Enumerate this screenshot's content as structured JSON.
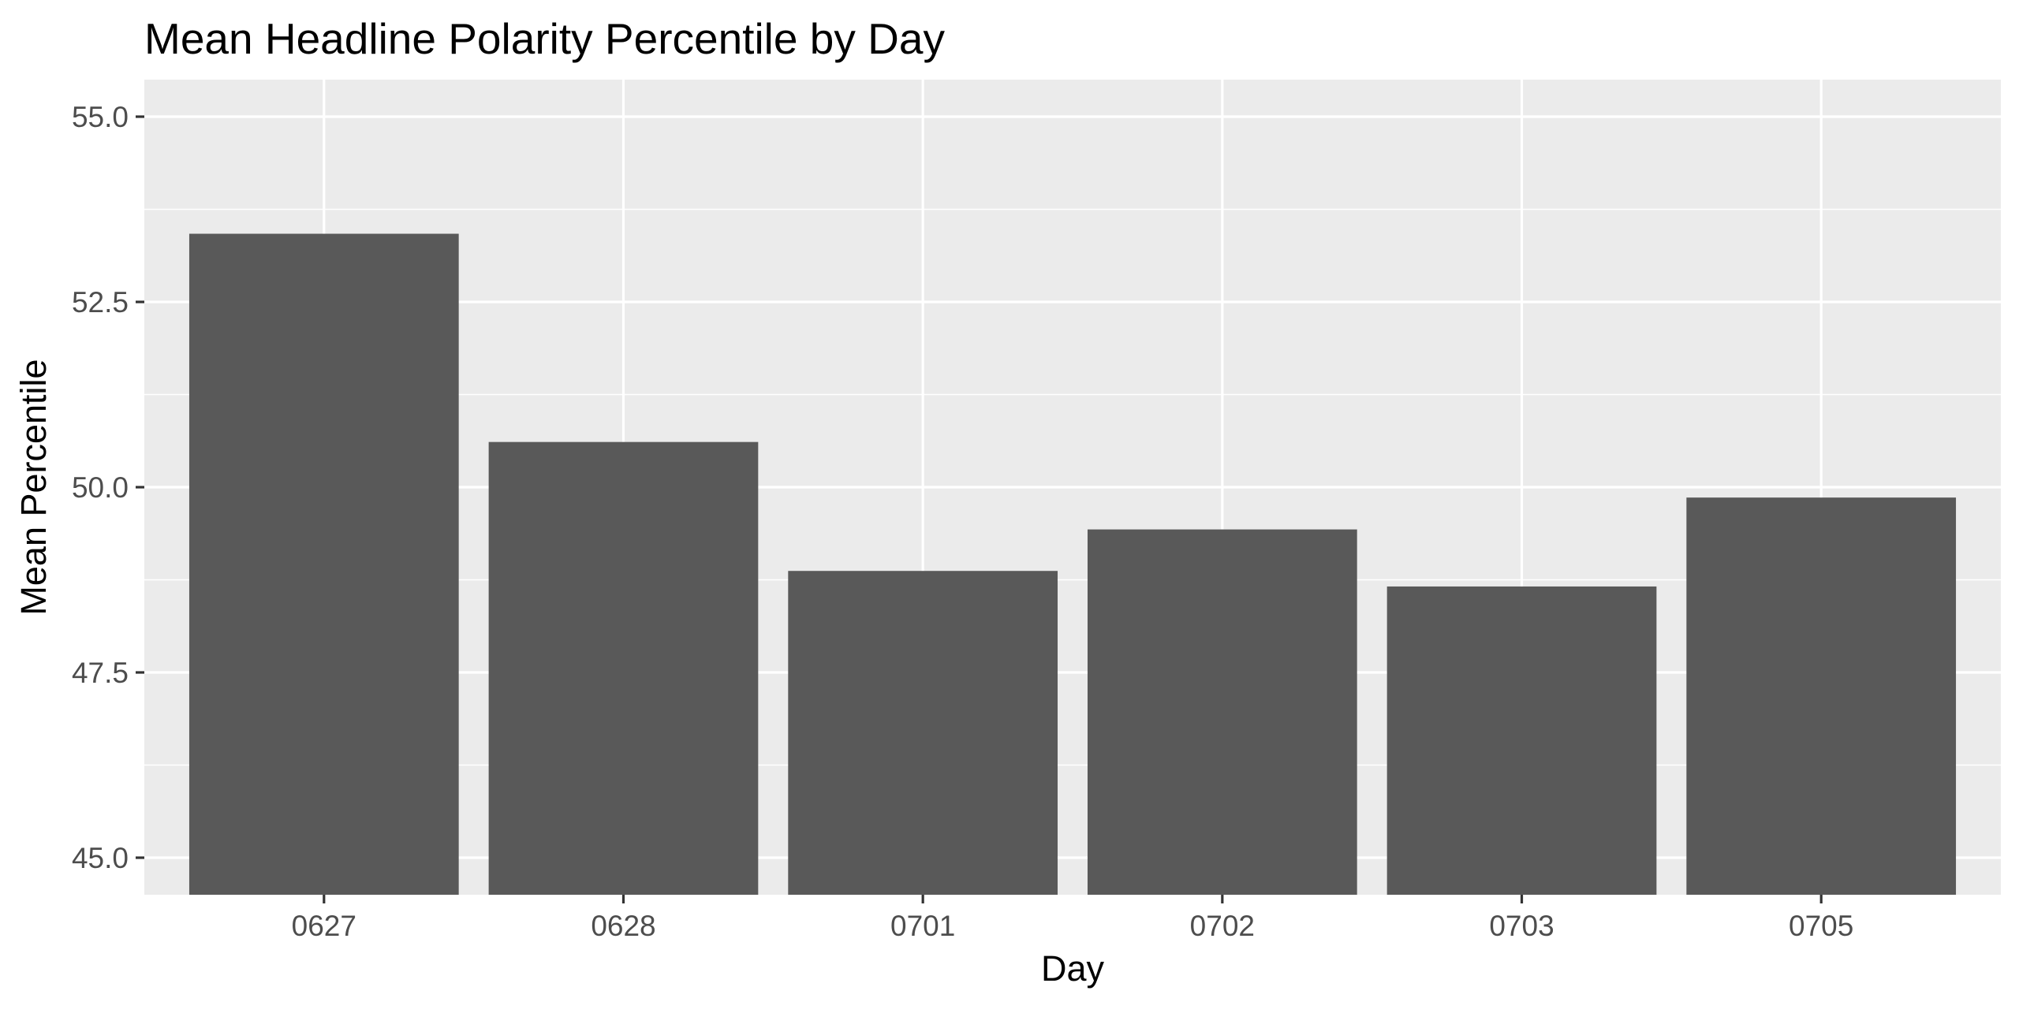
{
  "chart_data": {
    "type": "bar",
    "title": "Mean Headline Polarity Percentile by Day",
    "xlabel": "Day",
    "ylabel": "Mean Percentile",
    "categories": [
      "0627",
      "0628",
      "0701",
      "0702",
      "0703",
      "0705"
    ],
    "values": [
      53.42,
      50.61,
      48.87,
      49.43,
      48.66,
      49.86
    ],
    "ylim": [
      44.5,
      55.5
    ],
    "yticks": [
      45.0,
      47.5,
      50.0,
      52.5,
      55.0
    ],
    "ytick_labels": [
      "45.0",
      "47.5",
      "50.0",
      "52.5",
      "55.0"
    ],
    "grid": true,
    "legend": "none",
    "colors": {
      "bar": "#595959",
      "panel_background": "#ebebeb",
      "grid": "#ffffff",
      "tick_label": "#4d4d4d",
      "text": "#000000"
    }
  }
}
